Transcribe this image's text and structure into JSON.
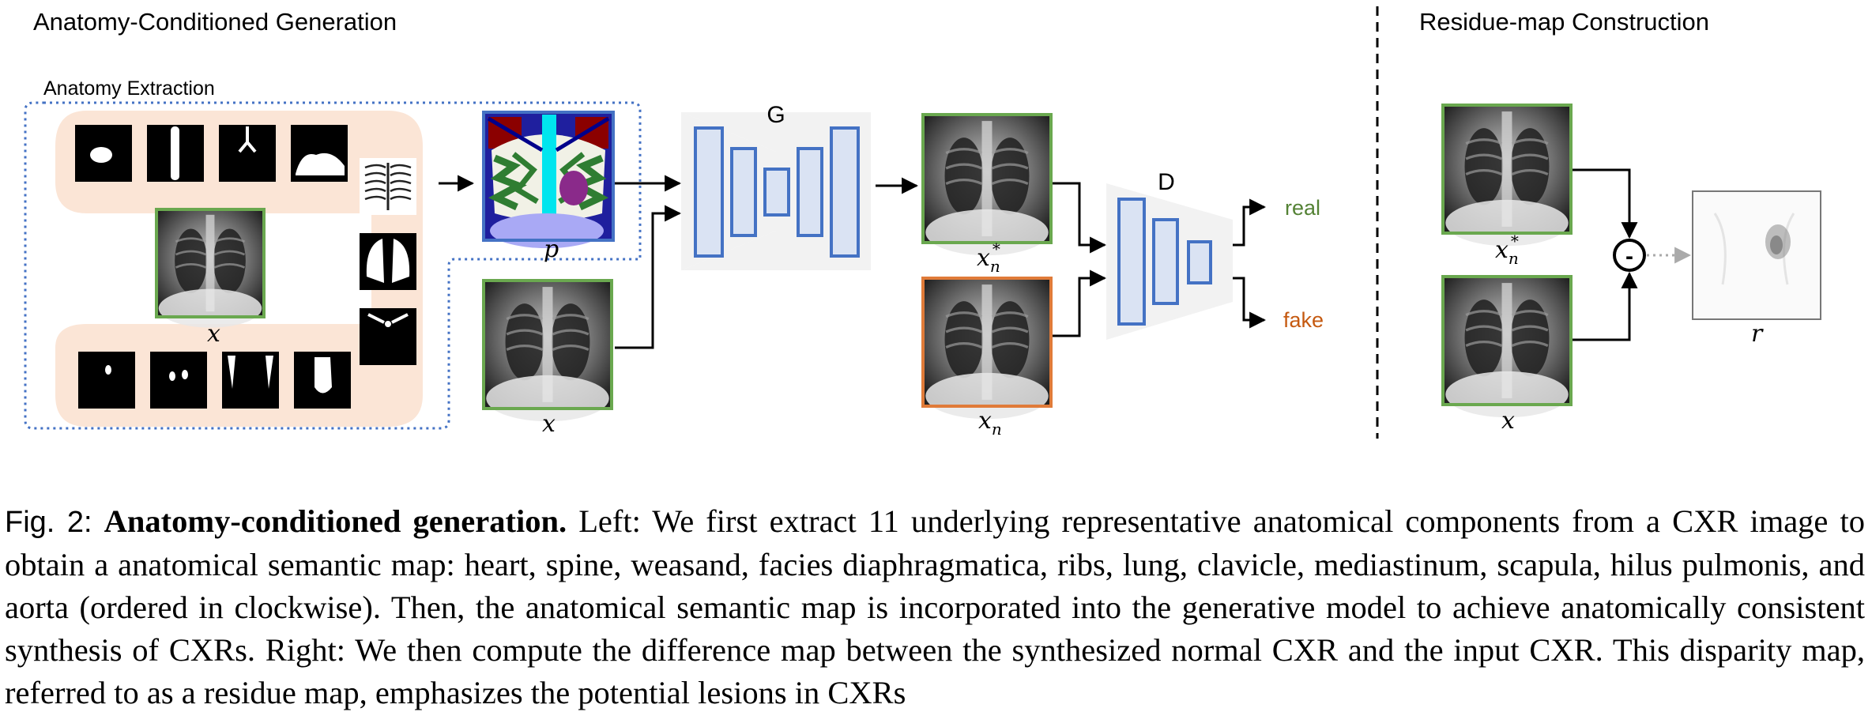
{
  "panels": {
    "left_title": "Anatomy-Conditioned Generation",
    "right_title": "Residue-map Construction",
    "anatomy_label": "Anatomy Extraction"
  },
  "nodes": {
    "generator": "G",
    "discriminator": "D",
    "real": "real",
    "fake": "fake",
    "minus": "-"
  },
  "math_labels": {
    "semantic_map": "p",
    "input_left": "x",
    "input_mid": "x",
    "synth_base": "x",
    "synth_sub": "n",
    "synth_sup": "*",
    "normal_base": "x",
    "normal_sub": "n",
    "residue_synth_base": "x",
    "residue_synth_sub": "n",
    "residue_synth_sup": "*",
    "residue_input": "x",
    "residue_output": "r"
  },
  "caption": {
    "prefix": "Fig. 2:",
    "bold": "Anatomy-conditioned generation.",
    "body": " Left: We first extract 11 underlying representative anatomical components from a CXR image to obtain a anatomical semantic map: heart, spine, weasand, facies diaphragmatica, ribs, lung, clavicle, mediastinum, scapula, hilus pulmonis, and aorta (ordered in clockwise). Then, the anatomical semantic map is incorporated into the generative model to achieve anatomically consistent synthesis of CXRs. Right: We then compute the difference map between the synthesized normal CXR and the input CXR. This disparity map, referred to as a residue map, emphasizes the potential lesions in CXRs"
  },
  "colors": {
    "green_frame": "#6aa84f",
    "orange_frame": "#e07b39",
    "blue_block": "#4472c4",
    "block_fill": "#dae3f3",
    "peach": "#fbe5d6",
    "real_text": "#548235",
    "fake_text": "#c55a11",
    "dotted_blue": "#4472c4"
  }
}
